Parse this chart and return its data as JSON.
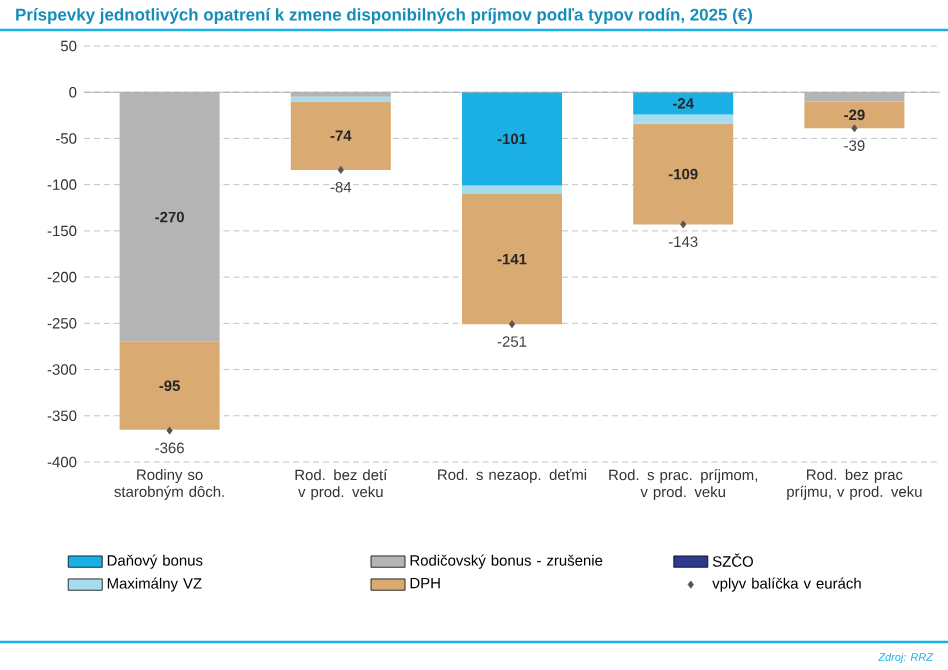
{
  "chart_data": {
    "type": "bar",
    "stacked": true,
    "title": "Príspevky jednotlivých opatrení k zmene disponibilných príjmov podľa typov rodín, 2025 (€)",
    "categories": [
      "Rodiny so starobným dôch.",
      "Rod. bez detí v prod. veku",
      "Rod. s nezaop. deťmi",
      "Rod. s prac. príjmom, v prod. veku",
      "Rod. bez prac príjmu, v prod. veku"
    ],
    "series": [
      {
        "name": "Daňový bonus",
        "color": "#1ab0e6",
        "values": [
          null,
          null,
          -101,
          -24,
          null
        ],
        "value_labels": [
          null,
          null,
          "-101",
          "-24",
          null
        ]
      },
      {
        "name": "Rodičovský bonus - zrušenie",
        "color": "#b4b4b4",
        "values": [
          -270,
          -5,
          null,
          null,
          -10
        ],
        "value_labels": [
          "-270",
          null,
          null,
          null,
          null
        ]
      },
      {
        "name": "SZČO",
        "color": "#2e3a8c",
        "values": [
          null,
          null,
          null,
          null,
          null
        ]
      },
      {
        "name": "Maximálny VZ",
        "color": "#a6dcf0",
        "values": [
          null,
          -5,
          -9,
          -10,
          null
        ]
      },
      {
        "name": "DPH",
        "color": "#d9aa72",
        "values": [
          -95,
          -74,
          -141,
          -109,
          -29
        ],
        "value_labels": [
          "-95",
          "-74",
          "-141",
          "-109",
          "-29"
        ]
      },
      {
        "name": "vplyv balíčka v eurách",
        "type": "scatter",
        "marker": "diamond",
        "color": "#555555",
        "values": [
          -366,
          -84,
          -251,
          -143,
          -39
        ],
        "value_labels": [
          "-366",
          "-84",
          "-251",
          "-143",
          "-39"
        ]
      }
    ],
    "ylim": [
      -400,
      50
    ],
    "yticks": [
      -400,
      -350,
      -300,
      -250,
      -200,
      -150,
      -100,
      -50,
      0,
      50
    ],
    "grid": "y",
    "legend": "bottom",
    "annotations": [
      "Zdroj: RRZ"
    ]
  }
}
